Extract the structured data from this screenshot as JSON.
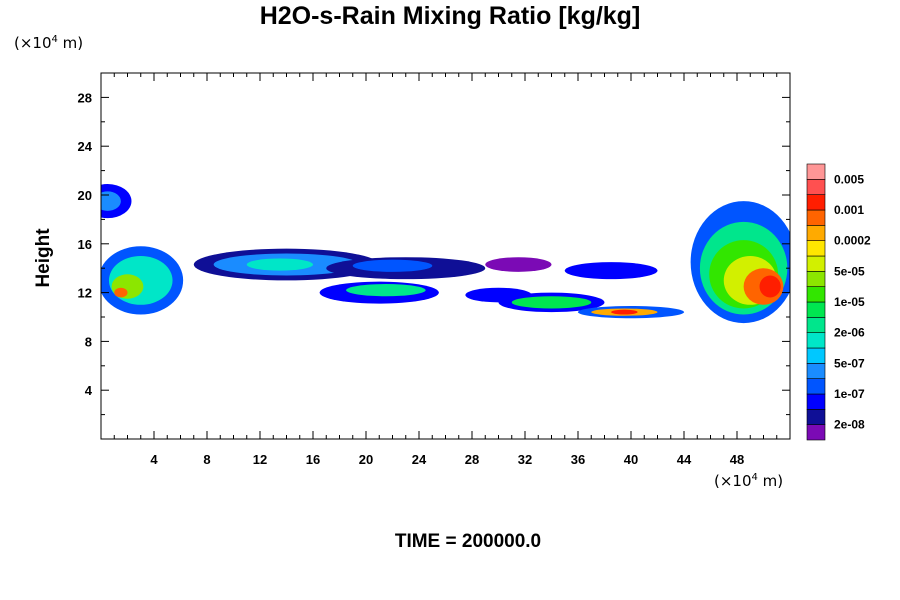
{
  "chart_data": {
    "type": "heatmap",
    "title": "H2O-s-Rain Mixing Ratio [kg/kg]",
    "xlabel": "",
    "ylabel": "Height",
    "x_unit_prefix": "(×10",
    "x_unit_exp": "4",
    "x_unit_suffix": " m)",
    "y_unit_prefix": "(×10",
    "y_unit_exp": "4",
    "y_unit_suffix": " m)",
    "xlim": [
      0,
      52
    ],
    "ylim": [
      0,
      30
    ],
    "x_ticks": [
      "4",
      "8",
      "12",
      "16",
      "20",
      "24",
      "28",
      "32",
      "36",
      "40",
      "44",
      "48"
    ],
    "y_ticks": [
      "4",
      "8",
      "12",
      "16",
      "20",
      "24",
      "28"
    ],
    "time_label": "TIME = 200000.0",
    "colorbar": {
      "colors": [
        "#7b0ab5",
        "#0f0f96",
        "#0000ff",
        "#0055ff",
        "#1a8cff",
        "#00c8ff",
        "#00e6c8",
        "#00e68c",
        "#00e650",
        "#32e600",
        "#8ce600",
        "#d2f000",
        "#ffe600",
        "#ffaa00",
        "#ff6400",
        "#ff1e00",
        "#ff5050",
        "#ff9696"
      ],
      "labels": [
        "2e-08",
        "1e-07",
        "5e-07",
        "2e-06",
        "1e-05",
        "5e-05",
        "0.0002",
        "0.001",
        "0.005"
      ]
    },
    "cells": [
      {
        "x": 0.5,
        "y": 19.5,
        "rx": 1.8,
        "ry": 1.4,
        "level": 2
      },
      {
        "x": 0.5,
        "y": 19.5,
        "rx": 1.0,
        "ry": 0.8,
        "level": 4
      },
      {
        "x": 3.0,
        "y": 13.0,
        "rx": 3.2,
        "ry": 2.8,
        "level": 3
      },
      {
        "x": 3.0,
        "y": 13.0,
        "rx": 2.4,
        "ry": 2.0,
        "level": 6
      },
      {
        "x": 2.0,
        "y": 12.5,
        "rx": 1.2,
        "ry": 1.0,
        "level": 10
      },
      {
        "x": 1.5,
        "y": 12.0,
        "rx": 0.5,
        "ry": 0.4,
        "level": 14
      },
      {
        "x": 14.0,
        "y": 14.3,
        "rx": 7.0,
        "ry": 1.3,
        "level": 1
      },
      {
        "x": 14.0,
        "y": 14.3,
        "rx": 5.5,
        "ry": 0.9,
        "level": 4
      },
      {
        "x": 13.5,
        "y": 14.3,
        "rx": 2.5,
        "ry": 0.5,
        "level": 6
      },
      {
        "x": 23.0,
        "y": 14.0,
        "rx": 6.0,
        "ry": 0.9,
        "level": 1
      },
      {
        "x": 22.0,
        "y": 14.2,
        "rx": 3.0,
        "ry": 0.5,
        "level": 3
      },
      {
        "x": 31.5,
        "y": 14.3,
        "rx": 2.5,
        "ry": 0.6,
        "level": 0
      },
      {
        "x": 21.0,
        "y": 12.0,
        "rx": 4.5,
        "ry": 0.9,
        "level": 2
      },
      {
        "x": 21.5,
        "y": 12.2,
        "rx": 3.0,
        "ry": 0.5,
        "level": 7
      },
      {
        "x": 30.0,
        "y": 11.8,
        "rx": 2.5,
        "ry": 0.6,
        "level": 2
      },
      {
        "x": 34.0,
        "y": 11.2,
        "rx": 4.0,
        "ry": 0.8,
        "level": 2
      },
      {
        "x": 34.0,
        "y": 11.2,
        "rx": 3.0,
        "ry": 0.5,
        "level": 8
      },
      {
        "x": 40.0,
        "y": 10.4,
        "rx": 4.0,
        "ry": 0.5,
        "level": 3
      },
      {
        "x": 39.5,
        "y": 10.4,
        "rx": 2.5,
        "ry": 0.3,
        "level": 13
      },
      {
        "x": 39.5,
        "y": 10.4,
        "rx": 1.0,
        "ry": 0.2,
        "level": 15
      },
      {
        "x": 38.5,
        "y": 13.8,
        "rx": 3.5,
        "ry": 0.7,
        "level": 2
      },
      {
        "x": 48.5,
        "y": 14.5,
        "rx": 4.0,
        "ry": 5.0,
        "level": 3
      },
      {
        "x": 48.5,
        "y": 14.0,
        "rx": 3.3,
        "ry": 3.8,
        "level": 7
      },
      {
        "x": 48.5,
        "y": 13.5,
        "rx": 2.6,
        "ry": 2.8,
        "level": 9
      },
      {
        "x": 49.0,
        "y": 13.0,
        "rx": 2.0,
        "ry": 2.0,
        "level": 11
      },
      {
        "x": 50.0,
        "y": 12.5,
        "rx": 1.5,
        "ry": 1.5,
        "level": 14
      },
      {
        "x": 50.5,
        "y": 12.5,
        "rx": 0.8,
        "ry": 0.9,
        "level": 15
      }
    ]
  }
}
